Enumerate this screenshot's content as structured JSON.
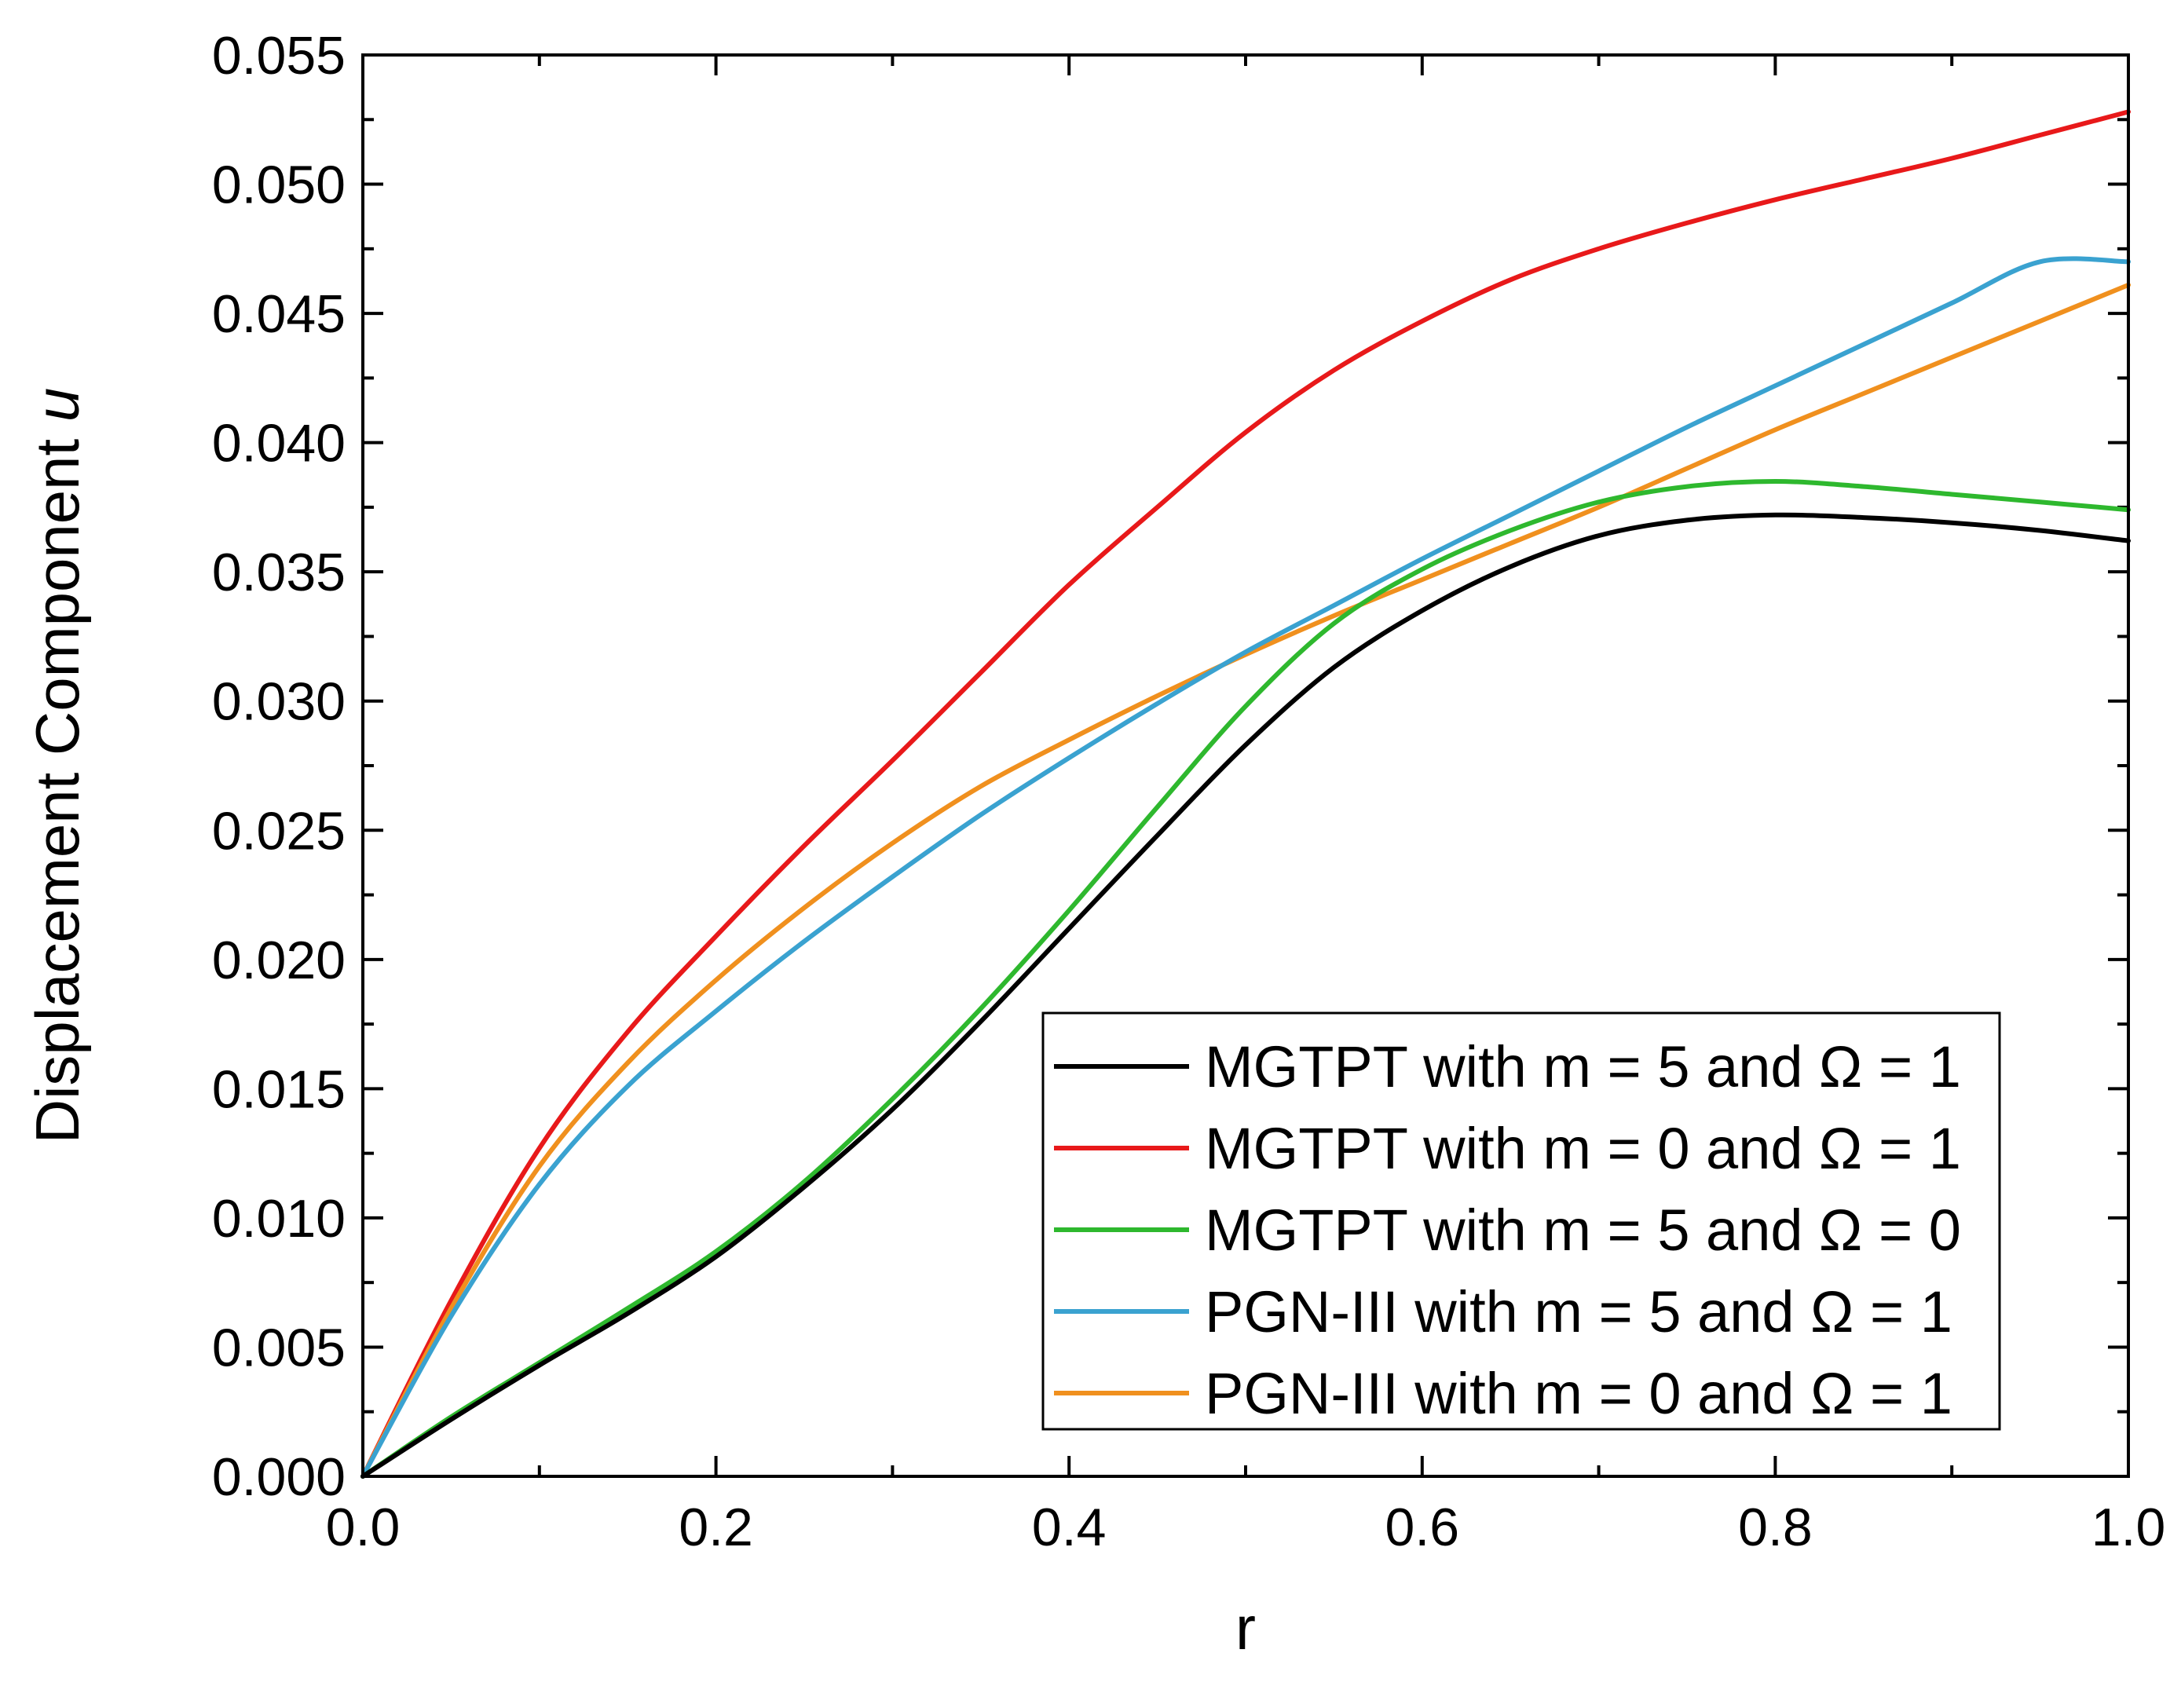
{
  "chart_data": {
    "type": "line",
    "title": "",
    "xlabel": "r",
    "ylabel": "Displacement Component u",
    "ylabel_main": "Displacement Component ",
    "ylabel_symbol": "u",
    "xlim": [
      0.0,
      1.0
    ],
    "ylim": [
      0.0,
      0.055
    ],
    "x_ticks": [
      "0.0",
      "0.2",
      "0.4",
      "0.6",
      "0.8",
      "1.0"
    ],
    "y_ticks": [
      "0.000",
      "0.005",
      "0.010",
      "0.015",
      "0.020",
      "0.025",
      "0.030",
      "0.035",
      "0.040",
      "0.045",
      "0.050",
      "0.055"
    ],
    "grid": false,
    "legend_position": "bottom-right",
    "x": [
      0.0,
      0.05,
      0.1,
      0.15,
      0.2,
      0.25,
      0.3,
      0.35,
      0.4,
      0.45,
      0.5,
      0.55,
      0.6,
      0.65,
      0.7,
      0.75,
      0.8,
      0.85,
      0.9,
      0.95,
      1.0
    ],
    "series": [
      {
        "name": "MGTPT with m = 5 and Ω = 1",
        "color": "#000000",
        "values": [
          0.0,
          0.0022,
          0.0043,
          0.0063,
          0.0085,
          0.0112,
          0.0142,
          0.0176,
          0.0212,
          0.0248,
          0.0283,
          0.0313,
          0.0335,
          0.0352,
          0.0364,
          0.037,
          0.0372,
          0.0371,
          0.0369,
          0.0366,
          0.0362
        ]
      },
      {
        "name": "MGTPT with m = 0 and Ω = 1",
        "color": "#e8191a",
        "values": [
          0.0,
          0.0068,
          0.0127,
          0.0172,
          0.0209,
          0.0244,
          0.0277,
          0.0311,
          0.0345,
          0.0375,
          0.0404,
          0.0428,
          0.0447,
          0.0463,
          0.0475,
          0.0485,
          0.0494,
          0.0502,
          0.051,
          0.0519,
          0.0528
        ]
      },
      {
        "name": "MGTPT with m = 5 and Ω = 0",
        "color": "#2eb82e",
        "values": [
          0.0,
          0.0023,
          0.0044,
          0.0065,
          0.0087,
          0.0114,
          0.0146,
          0.0181,
          0.0219,
          0.0259,
          0.0298,
          0.033,
          0.0351,
          0.0366,
          0.0377,
          0.0383,
          0.0385,
          0.0383,
          0.038,
          0.0377,
          0.0374
        ]
      },
      {
        "name": "PGN-III with m = 5 and Ω = 1",
        "color": "#3aa2d0",
        "values": [
          0.0,
          0.0062,
          0.0113,
          0.0151,
          0.018,
          0.0207,
          0.0232,
          0.0256,
          0.0278,
          0.0299,
          0.0319,
          0.0337,
          0.0355,
          0.0372,
          0.0389,
          0.0406,
          0.0422,
          0.0438,
          0.0454,
          0.047,
          0.047
        ]
      },
      {
        "name": "PGN-III with m = 0 and Ω = 1",
        "color": "#f0901e",
        "values": [
          0.0,
          0.0065,
          0.012,
          0.016,
          0.0192,
          0.022,
          0.0245,
          0.0267,
          0.0285,
          0.0302,
          0.0318,
          0.0333,
          0.0347,
          0.0361,
          0.0375,
          0.039,
          0.0405,
          0.0419,
          0.0433,
          0.0447,
          0.0461
        ]
      }
    ]
  }
}
